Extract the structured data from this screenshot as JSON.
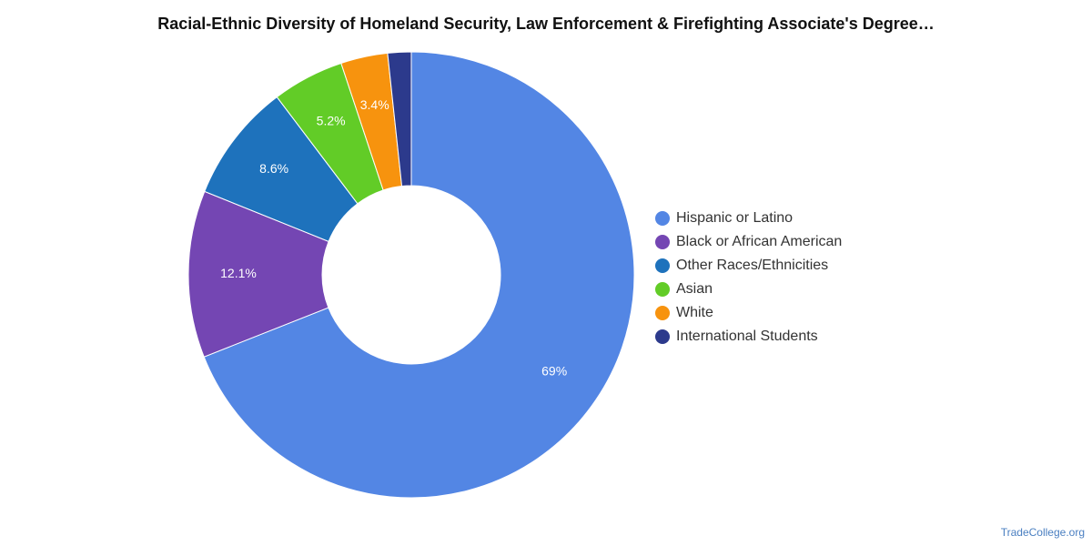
{
  "chart_data": {
    "type": "pie",
    "donut": true,
    "title": "Racial-Ethnic Diversity of Homeland Security, Law Enforcement & Firefighting Associate's Degree…",
    "categories": [
      "Hispanic or Latino",
      "Black or African American",
      "Other Races/Ethnicities",
      "Asian",
      "White",
      "International Students"
    ],
    "values": [
      69,
      12.1,
      8.6,
      5.2,
      3.4,
      1.7
    ],
    "data_labels": [
      "69%",
      "12.1%",
      "8.6%",
      "5.2%",
      "3.4%",
      ""
    ],
    "colors": [
      "#5386e4",
      "#7446b3",
      "#1e72bc",
      "#62cc27",
      "#f7930e",
      "#2c3a8c"
    ],
    "legend_position": "right"
  },
  "footer": {
    "source": "TradeCollege.org"
  }
}
